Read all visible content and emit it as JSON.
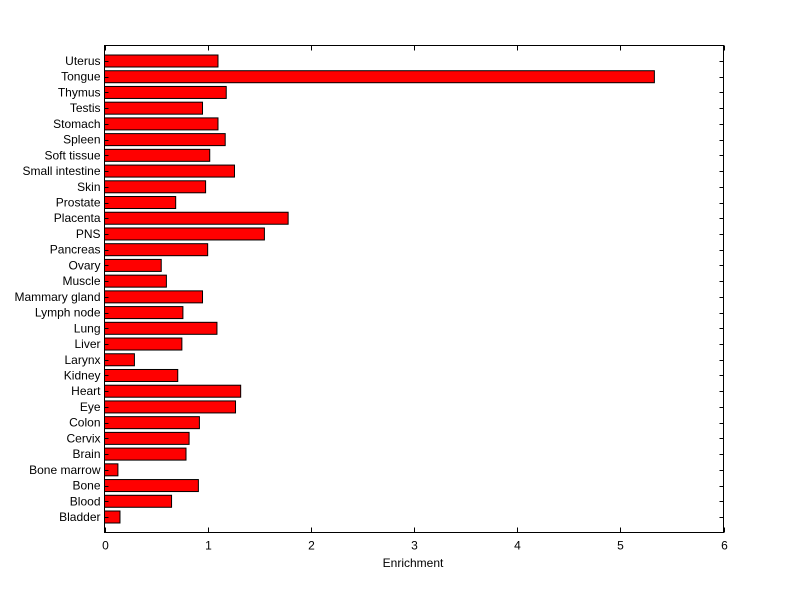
{
  "chart_data": {
    "type": "bar",
    "orientation": "horizontal",
    "title": "",
    "xlabel": "Enrichment",
    "ylabel": "",
    "xlim": [
      0,
      6
    ],
    "xticks": [
      0,
      1,
      2,
      3,
      4,
      5,
      6
    ],
    "grid": false,
    "bar_color": "#ff0000",
    "categories": [
      "Uterus",
      "Tongue",
      "Thymus",
      "Testis",
      "Stomach",
      "Spleen",
      "Soft tissue",
      "Small intestine",
      "Skin",
      "Prostate",
      "Placenta",
      "PNS",
      "Pancreas",
      "Ovary",
      "Muscle",
      "Mammary gland",
      "Lymph node",
      "Lung",
      "Liver",
      "Larynx",
      "Kidney",
      "Heart",
      "Eye",
      "Colon",
      "Cervix",
      "Brain",
      "Bone marrow",
      "Bone",
      "Blood",
      "Bladder"
    ],
    "values": [
      1.1,
      5.33,
      1.18,
      0.95,
      1.1,
      1.17,
      1.02,
      1.26,
      0.98,
      0.69,
      1.78,
      1.55,
      1.0,
      0.55,
      0.6,
      0.95,
      0.76,
      1.09,
      0.75,
      0.29,
      0.71,
      1.32,
      1.27,
      0.92,
      0.82,
      0.79,
      0.13,
      0.91,
      0.65,
      0.15
    ]
  }
}
